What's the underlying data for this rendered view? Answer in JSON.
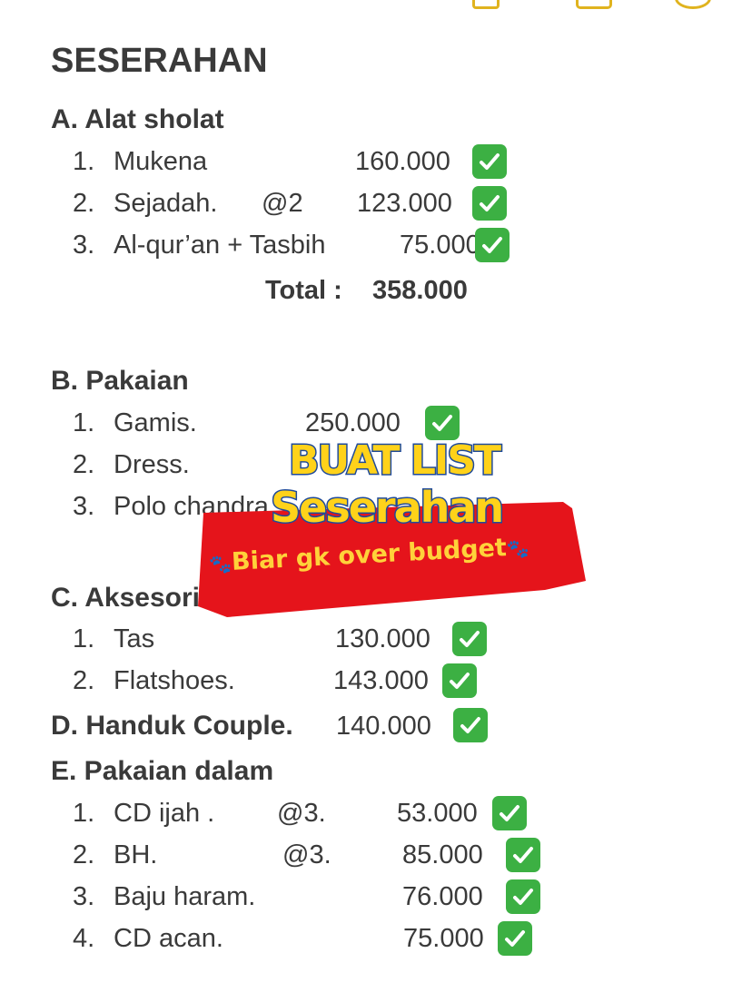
{
  "title": "SESERAHAN",
  "sections": [
    {
      "heading": "A. Alat sholat",
      "items": [
        {
          "num": "1.",
          "name": "Mukena",
          "qty": "",
          "price": "160.000",
          "checked": true
        },
        {
          "num": "2.",
          "name": "Sejadah.",
          "qty": "@2",
          "price": "123.000",
          "checked": true
        },
        {
          "num": "3.",
          "name": "Al-qur’an + Tasbih",
          "qty": "",
          "price": "75.000",
          "checked": true
        }
      ],
      "total_label": "Total :",
      "total": "358.000"
    },
    {
      "heading": "B. Pakaian",
      "items": [
        {
          "num": "1.",
          "name": "Gamis.",
          "price": "250.000",
          "checked": true
        },
        {
          "num": "2.",
          "name": "Dress."
        },
        {
          "num": "3.",
          "name": "Polo chandra"
        }
      ]
    },
    {
      "heading": "C. Aksesoris",
      "items": [
        {
          "num": "1.",
          "name": "Tas",
          "price": "130.000",
          "checked": true
        },
        {
          "num": "2.",
          "name": "Flatshoes.",
          "price": "143.000",
          "checked": true
        }
      ]
    },
    {
      "heading": "D. Handuk Couple.",
      "price": "140.000",
      "checked": true
    },
    {
      "heading": "E. Pakaian dalam",
      "items": [
        {
          "num": "1.",
          "name": "CD ijah .",
          "qty": "@3.",
          "price": "53.000",
          "checked": true
        },
        {
          "num": "2.",
          "name": "BH.",
          "qty": "@3.",
          "price": "85.000",
          "checked": true
        },
        {
          "num": "3.",
          "name": "Baju haram.",
          "price": "76.000",
          "checked": true
        },
        {
          "num": "4.",
          "name": "CD acan.",
          "price": "75.000",
          "checked": true
        }
      ]
    }
  ],
  "overlay": {
    "line1": "BUAT LIST",
    "line2": "Seserahan",
    "subtitle": "Biar gk over budget",
    "paw_icon": "🐾",
    "banner_color": "#e5141b",
    "text_color": "#ffd21a"
  },
  "check_icon": "white-check-mark-on-green"
}
